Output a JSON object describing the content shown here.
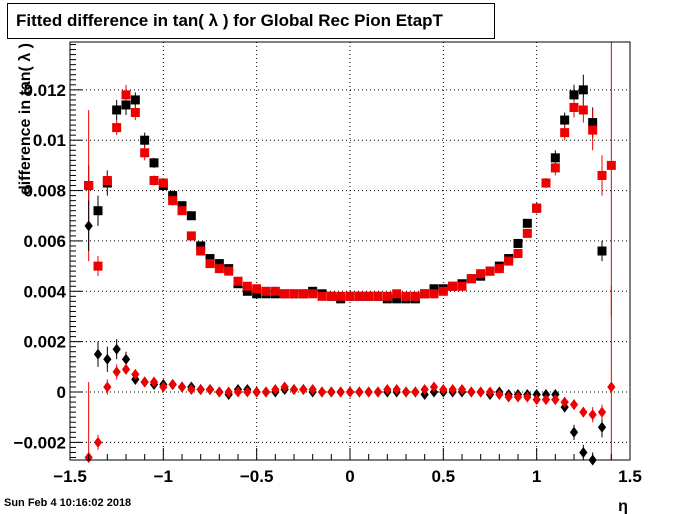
{
  "title": "Fitted difference in tan( λ ) for Global Rec Pion EtapT",
  "datestamp": "Sun Feb  4 10:16:02 2018",
  "chart_data": {
    "type": "scatter",
    "title": "Fitted difference in tan( λ ) for Global Rec Pion EtapT",
    "xlabel": "η",
    "ylabel": "difference in tan( λ )",
    "xlim": [
      -1.5,
      1.5
    ],
    "ylim": [
      -0.0027,
      0.0139
    ],
    "grid": true,
    "x_ticks": [
      "−1.5",
      "−1",
      "−0.5",
      "0",
      "0.5",
      "1",
      "1.5"
    ],
    "y_ticks": [
      "−0.002",
      "0",
      "0.002",
      "0.004",
      "0.006",
      "0.008",
      "0.01",
      "0.012"
    ],
    "colors": {
      "black": "#000000",
      "red": "#ee0000"
    },
    "series": [
      {
        "color": "#000000",
        "marker": "square",
        "points": [
          [
            -1.4,
            0.0082,
            0.0008
          ],
          [
            -1.35,
            0.0072,
            0.0006
          ],
          [
            -1.3,
            0.0083,
            0.0005
          ],
          [
            -1.25,
            0.0112,
            0.0004
          ],
          [
            -1.2,
            0.0114,
            0.0004
          ],
          [
            -1.15,
            0.0116,
            0.0003
          ],
          [
            -1.1,
            0.01,
            0.0003
          ],
          [
            -1.05,
            0.0091,
            0.0002
          ],
          [
            -1.0,
            0.0082,
            0.0002
          ],
          [
            -0.95,
            0.0078,
            0.0002
          ],
          [
            -0.9,
            0.0074,
            0.00015
          ],
          [
            -0.85,
            0.007,
            0.00015
          ],
          [
            -0.8,
            0.0058,
            0.00015
          ],
          [
            -0.75,
            0.0053,
            0.00012
          ],
          [
            -0.7,
            0.0051,
            0.00012
          ],
          [
            -0.65,
            0.0049,
            0.00012
          ],
          [
            -0.6,
            0.0043,
            0.0001
          ],
          [
            -0.55,
            0.004,
            0.0001
          ],
          [
            -0.5,
            0.0039,
            0.0001
          ],
          [
            -0.45,
            0.0039,
            0.0001
          ],
          [
            -0.4,
            0.0039,
            0.0001
          ],
          [
            -0.35,
            0.0039,
            0.0001
          ],
          [
            -0.3,
            0.0039,
            0.0001
          ],
          [
            -0.25,
            0.0039,
            0.0001
          ],
          [
            -0.2,
            0.004,
            0.0001
          ],
          [
            -0.15,
            0.0039,
            0.0001
          ],
          [
            -0.1,
            0.0038,
            0.0001
          ],
          [
            -0.05,
            0.0037,
            0.0001
          ],
          [
            0.0,
            0.0038,
            0.0001
          ],
          [
            0.05,
            0.0038,
            0.0001
          ],
          [
            0.1,
            0.0038,
            0.0001
          ],
          [
            0.15,
            0.0038,
            0.0001
          ],
          [
            0.2,
            0.0037,
            0.0001
          ],
          [
            0.25,
            0.0037,
            0.0001
          ],
          [
            0.3,
            0.0037,
            0.0001
          ],
          [
            0.35,
            0.0037,
            0.0001
          ],
          [
            0.4,
            0.0039,
            0.0001
          ],
          [
            0.45,
            0.0041,
            0.0001
          ],
          [
            0.5,
            0.0041,
            0.0001
          ],
          [
            0.55,
            0.0042,
            0.0001
          ],
          [
            0.6,
            0.0043,
            0.0001
          ],
          [
            0.65,
            0.0045,
            0.0001
          ],
          [
            0.7,
            0.0046,
            0.0001
          ],
          [
            0.75,
            0.0048,
            0.00012
          ],
          [
            0.8,
            0.005,
            0.00012
          ],
          [
            0.85,
            0.0053,
            0.00012
          ],
          [
            0.9,
            0.0059,
            0.00015
          ],
          [
            0.95,
            0.0067,
            0.00015
          ],
          [
            1.0,
            0.0073,
            0.0002
          ],
          [
            1.05,
            0.0083,
            0.0002
          ],
          [
            1.1,
            0.0093,
            0.0003
          ],
          [
            1.15,
            0.0108,
            0.0003
          ],
          [
            1.2,
            0.0118,
            0.0004
          ],
          [
            1.25,
            0.012,
            0.0006
          ],
          [
            1.3,
            0.0107,
            0.0006
          ],
          [
            1.35,
            0.0056,
            0.0004
          ]
        ]
      },
      {
        "color": "#ee0000",
        "marker": "square",
        "points": [
          [
            -1.4,
            0.0082,
            0.003
          ],
          [
            -1.35,
            0.005,
            0.0004
          ],
          [
            -1.3,
            0.0084,
            0.0004
          ],
          [
            -1.25,
            0.0105,
            0.0003
          ],
          [
            -1.2,
            0.0118,
            0.0004
          ],
          [
            -1.15,
            0.0111,
            0.0003
          ],
          [
            -1.1,
            0.0095,
            0.0003
          ],
          [
            -1.05,
            0.0084,
            0.0002
          ],
          [
            -1.0,
            0.0083,
            0.0002
          ],
          [
            -0.95,
            0.0076,
            0.0002
          ],
          [
            -0.9,
            0.0072,
            0.00015
          ],
          [
            -0.85,
            0.0062,
            0.00015
          ],
          [
            -0.8,
            0.0056,
            0.00015
          ],
          [
            -0.75,
            0.0051,
            0.00012
          ],
          [
            -0.7,
            0.0049,
            0.00012
          ],
          [
            -0.65,
            0.0048,
            0.00012
          ],
          [
            -0.6,
            0.0044,
            0.0001
          ],
          [
            -0.55,
            0.0042,
            0.0001
          ],
          [
            -0.5,
            0.0041,
            0.0001
          ],
          [
            -0.45,
            0.004,
            0.0001
          ],
          [
            -0.4,
            0.004,
            0.0001
          ],
          [
            -0.35,
            0.0039,
            0.0001
          ],
          [
            -0.3,
            0.0039,
            0.0001
          ],
          [
            -0.25,
            0.0039,
            0.0001
          ],
          [
            -0.2,
            0.0039,
            0.0001
          ],
          [
            -0.15,
            0.0038,
            0.0001
          ],
          [
            -0.1,
            0.0038,
            0.0001
          ],
          [
            -0.05,
            0.0038,
            0.0001
          ],
          [
            0.0,
            0.0038,
            0.0001
          ],
          [
            0.05,
            0.0038,
            0.0001
          ],
          [
            0.1,
            0.0038,
            0.0001
          ],
          [
            0.15,
            0.0038,
            0.0001
          ],
          [
            0.2,
            0.0038,
            0.0001
          ],
          [
            0.25,
            0.0039,
            0.0001
          ],
          [
            0.3,
            0.0038,
            0.0001
          ],
          [
            0.35,
            0.0038,
            0.0001
          ],
          [
            0.4,
            0.0039,
            0.0001
          ],
          [
            0.45,
            0.0039,
            0.0001
          ],
          [
            0.5,
            0.004,
            0.0001
          ],
          [
            0.55,
            0.0042,
            0.0001
          ],
          [
            0.6,
            0.0042,
            0.0001
          ],
          [
            0.65,
            0.0045,
            0.0001
          ],
          [
            0.7,
            0.0047,
            0.0001
          ],
          [
            0.75,
            0.0048,
            0.00012
          ],
          [
            0.8,
            0.0049,
            0.00012
          ],
          [
            0.85,
            0.0052,
            0.00012
          ],
          [
            0.9,
            0.0055,
            0.00015
          ],
          [
            0.95,
            0.0063,
            0.00015
          ],
          [
            1.0,
            0.0073,
            0.0002
          ],
          [
            1.05,
            0.0083,
            0.0002
          ],
          [
            1.1,
            0.0089,
            0.0003
          ],
          [
            1.15,
            0.0103,
            0.0003
          ],
          [
            1.2,
            0.0113,
            0.0004
          ],
          [
            1.25,
            0.0112,
            0.0005
          ],
          [
            1.3,
            0.0104,
            0.0008
          ],
          [
            1.35,
            0.0086,
            0.0008
          ],
          [
            1.4,
            0.009,
            0.006
          ]
        ]
      },
      {
        "color": "#000000",
        "marker": "diamond",
        "points": [
          [
            -1.4,
            0.0066,
            0.001
          ],
          [
            -1.35,
            0.0015,
            0.0005
          ],
          [
            -1.3,
            0.0013,
            0.0005
          ],
          [
            -1.25,
            0.0017,
            0.0004
          ],
          [
            -1.2,
            0.0013,
            0.0003
          ],
          [
            -1.15,
            0.0005,
            0.0002
          ],
          [
            -1.1,
            0.0004,
            0.0002
          ],
          [
            -1.05,
            0.0003,
            0.0001
          ],
          [
            -1.0,
            0.0003,
            0.0001
          ],
          [
            -0.95,
            0.0003,
            0.0001
          ],
          [
            -0.9,
            0.0002,
            0.0001
          ],
          [
            -0.85,
            0.0002,
            0.0001
          ],
          [
            -0.8,
            0.0001,
            0.0001
          ],
          [
            -0.75,
            0.0001,
            0.0001
          ],
          [
            -0.7,
            0.0,
            0.0001
          ],
          [
            -0.65,
            -0.0001,
            0.0001
          ],
          [
            -0.6,
            0.0001,
            0.0001
          ],
          [
            -0.55,
            0.0001,
            0.0001
          ],
          [
            -0.5,
            0.0,
            0.0001
          ],
          [
            -0.45,
            0.0,
            0.0001
          ],
          [
            -0.4,
            0.0,
            0.0001
          ],
          [
            -0.35,
            0.0001,
            0.0001
          ],
          [
            -0.3,
            0.0001,
            0.0001
          ],
          [
            -0.25,
            0.0001,
            0.0001
          ],
          [
            -0.2,
            0.0,
            0.0001
          ],
          [
            -0.15,
            0.0,
            0.0001
          ],
          [
            -0.1,
            0.0,
            0.0001
          ],
          [
            -0.05,
            0.0,
            0.0001
          ],
          [
            0.0,
            0.0,
            0.0001
          ],
          [
            0.05,
            0.0,
            0.0001
          ],
          [
            0.1,
            0.0,
            0.0001
          ],
          [
            0.15,
            0.0,
            0.0001
          ],
          [
            0.2,
            0.0,
            0.0001
          ],
          [
            0.25,
            0.0,
            0.0001
          ],
          [
            0.3,
            0.0,
            0.0001
          ],
          [
            0.35,
            0.0,
            0.0001
          ],
          [
            0.4,
            -0.0001,
            0.0001
          ],
          [
            0.45,
            0.0,
            0.0001
          ],
          [
            0.5,
            0.0,
            0.0001
          ],
          [
            0.55,
            0.0,
            0.0001
          ],
          [
            0.6,
            0.0,
            0.0001
          ],
          [
            0.65,
            0.0,
            0.0001
          ],
          [
            0.7,
            0.0,
            0.0001
          ],
          [
            0.75,
            -0.0001,
            0.0001
          ],
          [
            0.8,
            0.0,
            0.0001
          ],
          [
            0.85,
            -0.0001,
            0.0001
          ],
          [
            0.9,
            -0.0001,
            0.0001
          ],
          [
            0.95,
            -0.0001,
            0.0001
          ],
          [
            1.0,
            -0.0001,
            0.0001
          ],
          [
            1.05,
            -0.0001,
            0.0001
          ],
          [
            1.1,
            -0.0001,
            0.0001
          ],
          [
            1.15,
            -0.0006,
            0.0002
          ],
          [
            1.2,
            -0.0016,
            0.0003
          ],
          [
            1.25,
            -0.0024,
            0.0003
          ],
          [
            1.3,
            -0.0027,
            0.0003
          ],
          [
            1.35,
            -0.0014,
            0.0004
          ]
        ]
      },
      {
        "color": "#ee0000",
        "marker": "diamond",
        "points": [
          [
            -1.4,
            -0.0026,
            0.003
          ],
          [
            -1.35,
            -0.002,
            0.0003
          ],
          [
            -1.3,
            0.0002,
            0.0003
          ],
          [
            -1.25,
            0.0008,
            0.0003
          ],
          [
            -1.2,
            0.0009,
            0.0002
          ],
          [
            -1.15,
            0.0007,
            0.0002
          ],
          [
            -1.1,
            0.0004,
            0.0001
          ],
          [
            -1.05,
            0.0004,
            0.0001
          ],
          [
            -1.0,
            0.0002,
            0.0001
          ],
          [
            -0.95,
            0.0003,
            0.0001
          ],
          [
            -0.9,
            0.0002,
            0.0001
          ],
          [
            -0.85,
            0.0001,
            0.0001
          ],
          [
            -0.8,
            0.0001,
            0.0001
          ],
          [
            -0.75,
            0.0001,
            0.0001
          ],
          [
            -0.7,
            0.0,
            0.0001
          ],
          [
            -0.65,
            0.0,
            0.0001
          ],
          [
            -0.6,
            0.0,
            0.0001
          ],
          [
            -0.55,
            0.0,
            0.0001
          ],
          [
            -0.5,
            0.0,
            0.0001
          ],
          [
            -0.45,
            0.0,
            0.0001
          ],
          [
            -0.4,
            0.0001,
            0.0001
          ],
          [
            -0.35,
            0.0002,
            0.0001
          ],
          [
            -0.3,
            0.0001,
            0.0001
          ],
          [
            -0.25,
            0.0001,
            0.0001
          ],
          [
            -0.2,
            0.0001,
            0.0001
          ],
          [
            -0.15,
            0.0,
            0.0001
          ],
          [
            -0.1,
            0.0,
            0.0001
          ],
          [
            -0.05,
            0.0,
            0.0001
          ],
          [
            0.0,
            0.0,
            0.0001
          ],
          [
            0.05,
            0.0,
            0.0001
          ],
          [
            0.1,
            0.0,
            0.0001
          ],
          [
            0.15,
            0.0,
            0.0001
          ],
          [
            0.2,
            0.0001,
            0.0001
          ],
          [
            0.25,
            0.0001,
            0.0001
          ],
          [
            0.3,
            0.0,
            0.0001
          ],
          [
            0.35,
            0.0,
            0.0001
          ],
          [
            0.4,
            0.0001,
            0.0001
          ],
          [
            0.45,
            0.0002,
            0.0001
          ],
          [
            0.5,
            0.0001,
            0.0001
          ],
          [
            0.55,
            0.0001,
            0.0001
          ],
          [
            0.6,
            0.0001,
            0.0001
          ],
          [
            0.65,
            0.0,
            0.0001
          ],
          [
            0.7,
            0.0,
            0.0001
          ],
          [
            0.75,
            0.0,
            0.0001
          ],
          [
            0.8,
            -0.0001,
            0.0001
          ],
          [
            0.85,
            -0.0002,
            0.0001
          ],
          [
            0.9,
            -0.0002,
            0.0001
          ],
          [
            0.95,
            -0.0002,
            0.0001
          ],
          [
            1.0,
            -0.0003,
            0.0001
          ],
          [
            1.05,
            -0.0003,
            0.0001
          ],
          [
            1.1,
            -0.0003,
            0.0001
          ],
          [
            1.15,
            -0.0004,
            0.0001
          ],
          [
            1.2,
            -0.0005,
            0.0002
          ],
          [
            1.25,
            -0.0008,
            0.0002
          ],
          [
            1.3,
            -0.0009,
            0.0003
          ],
          [
            1.35,
            -0.0008,
            0.0003
          ],
          [
            1.4,
            0.0002,
            0.004
          ]
        ]
      }
    ]
  }
}
